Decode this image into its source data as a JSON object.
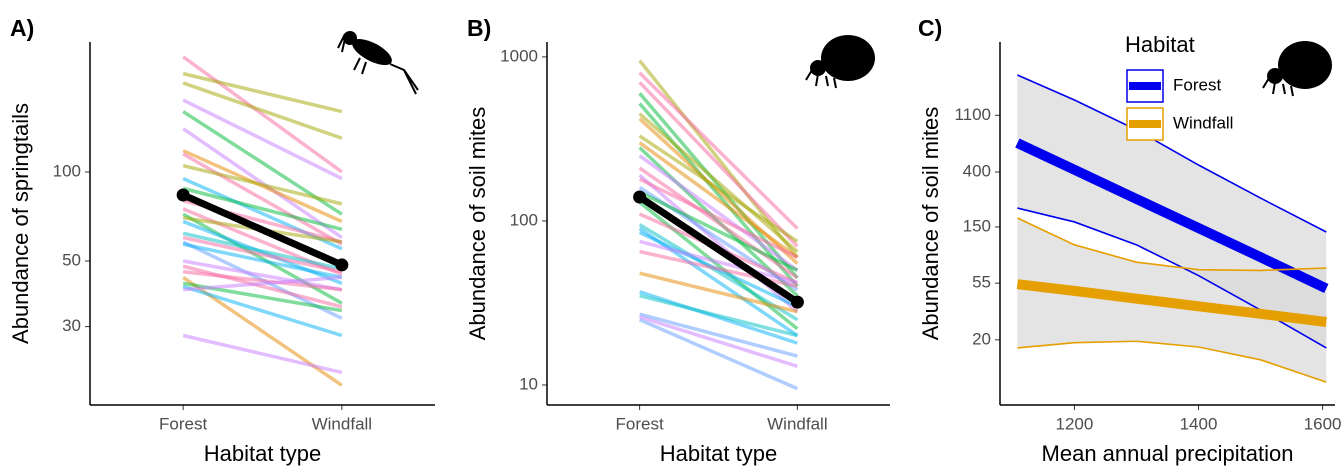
{
  "chart_data": [
    {
      "type": "slope",
      "label": "A)",
      "x_label": "Habitat type",
      "y_label": "Abundance of springtails",
      "categories": [
        "Forest",
        "Windfall"
      ],
      "log_y": true,
      "ylim": [
        16.3,
        275
      ],
      "yticks": [
        30,
        50,
        100
      ],
      "lines": [
        {
          "color": "#f766a0",
          "values": [
            245,
            100
          ]
        },
        {
          "color": "#a3a500",
          "values": [
            215,
            160
          ]
        },
        {
          "color": "#a3a500",
          "values": [
            200,
            130
          ]
        },
        {
          "color": "#c77cff",
          "values": [
            175,
            95
          ]
        },
        {
          "color": "#00ba38",
          "values": [
            160,
            72
          ]
        },
        {
          "color": "#c77cff",
          "values": [
            140,
            60
          ]
        },
        {
          "color": "#e58700",
          "values": [
            118,
            68
          ]
        },
        {
          "color": "#f766a0",
          "values": [
            115,
            57
          ]
        },
        {
          "color": "#a3a500",
          "values": [
            105,
            78
          ]
        },
        {
          "color": "#00b0f6",
          "values": [
            95,
            55
          ]
        },
        {
          "color": "#00ba38",
          "values": [
            88,
            64
          ]
        },
        {
          "color": "#f766a0",
          "values": [
            80,
            58
          ]
        },
        {
          "color": "#f766a0",
          "values": [
            75,
            45
          ]
        },
        {
          "color": "#00ba38",
          "values": [
            72,
            36
          ]
        },
        {
          "color": "#a3a500",
          "values": [
            70,
            58
          ]
        },
        {
          "color": "#00b0f6",
          "values": [
            68,
            42
          ]
        },
        {
          "color": "#00bfc4",
          "values": [
            62,
            47
          ]
        },
        {
          "color": "#f766a0",
          "values": [
            60,
            46
          ]
        },
        {
          "color": "#619cff",
          "values": [
            58,
            32
          ]
        },
        {
          "color": "#00b0f6",
          "values": [
            57,
            44
          ]
        },
        {
          "color": "#c77cff",
          "values": [
            50,
            40
          ]
        },
        {
          "color": "#f766a0",
          "values": [
            48,
            35
          ]
        },
        {
          "color": "#f766a0",
          "values": [
            46,
            40
          ]
        },
        {
          "color": "#e58700",
          "values": [
            44,
            19
          ]
        },
        {
          "color": "#00ba38",
          "values": [
            42,
            34
          ]
        },
        {
          "color": "#00b0f6",
          "values": [
            41,
            28
          ]
        },
        {
          "color": "#c77cff",
          "values": [
            40,
            44
          ]
        },
        {
          "color": "#c77cff",
          "values": [
            28,
            21
          ]
        }
      ],
      "mean_line": {
        "color": "#000000",
        "values": [
          83.6,
          48.5
        ]
      }
    },
    {
      "type": "slope",
      "label": "B)",
      "x_label": "Habitat type",
      "y_label": "Abundance of soil mites",
      "categories": [
        "Forest",
        "Windfall"
      ],
      "log_y": true,
      "ylim": [
        7.55,
        1233
      ],
      "yticks": [
        10,
        100,
        1000
      ],
      "lines": [
        {
          "color": "#a3a500",
          "values": [
            950,
            60
          ]
        },
        {
          "color": "#f766a0",
          "values": [
            800,
            90
          ]
        },
        {
          "color": "#f766a0",
          "values": [
            700,
            70
          ]
        },
        {
          "color": "#00ba38",
          "values": [
            600,
            45
          ]
        },
        {
          "color": "#00ba38",
          "values": [
            520,
            40
          ]
        },
        {
          "color": "#a3a500",
          "values": [
            450,
            65
          ]
        },
        {
          "color": "#e58700",
          "values": [
            420,
            55
          ]
        },
        {
          "color": "#a3a500",
          "values": [
            330,
            75
          ]
        },
        {
          "color": "#e58700",
          "values": [
            300,
            60
          ]
        },
        {
          "color": "#00ba38",
          "values": [
            280,
            35
          ]
        },
        {
          "color": "#c77cff",
          "values": [
            250,
            50
          ]
        },
        {
          "color": "#f766a0",
          "values": [
            210,
            45
          ]
        },
        {
          "color": "#c77cff",
          "values": [
            190,
            28
          ]
        },
        {
          "color": "#f766a0",
          "values": [
            180,
            60
          ]
        },
        {
          "color": "#619cff",
          "values": [
            160,
            38
          ]
        },
        {
          "color": "#00ba38",
          "values": [
            150,
            50
          ]
        },
        {
          "color": "#00ba38",
          "values": [
            130,
            22
          ]
        },
        {
          "color": "#f766a0",
          "values": [
            110,
            42
          ]
        },
        {
          "color": "#00bfc4",
          "values": [
            95,
            25
          ]
        },
        {
          "color": "#00b0f6",
          "values": [
            90,
            20
          ]
        },
        {
          "color": "#00b0f6",
          "values": [
            85,
            30
          ]
        },
        {
          "color": "#c77cff",
          "values": [
            75,
            42
          ]
        },
        {
          "color": "#f766a0",
          "values": [
            65,
            40
          ]
        },
        {
          "color": "#e58700",
          "values": [
            48,
            28
          ]
        },
        {
          "color": "#00b0f6",
          "values": [
            37,
            18
          ]
        },
        {
          "color": "#00bfc4",
          "values": [
            35,
            20
          ]
        },
        {
          "color": "#619cff",
          "values": [
            27,
            15
          ]
        },
        {
          "color": "#619cff",
          "values": [
            25,
            9.5
          ]
        },
        {
          "color": "#c77cff",
          "values": [
            26,
            13
          ]
        }
      ],
      "mean_line": {
        "color": "#000000",
        "values": [
          140,
          32
        ]
      }
    },
    {
      "type": "line",
      "label": "C)",
      "x_label": "Mean annual precipitation",
      "y_label": "Abundance of soil mites",
      "legend_title": "Habitat",
      "log_y": true,
      "xlim": [
        1080,
        1620
      ],
      "xticks": [
        1200,
        1400,
        1600
      ],
      "ylim": [
        6.25,
        4070
      ],
      "yticks": [
        20,
        55,
        150,
        400,
        1100
      ],
      "band_color": "#d9d9d9",
      "x": [
        1108,
        1200,
        1300,
        1400,
        1500,
        1606
      ],
      "series": [
        {
          "name": "Forest",
          "color": "#0000ee",
          "values": [
            671,
            416,
            247,
            147,
            87.4,
            50
          ],
          "upper": [
            2258,
            1445,
            848,
            453,
            251,
            137
          ],
          "lower": [
            210,
            164,
            109,
            63,
            34,
            17.3
          ]
        },
        {
          "name": "Windfall",
          "color": "#e69f00",
          "values": [
            54,
            47.9,
            41.7,
            36.4,
            31.8,
            27.5
          ],
          "upper": [
            176,
            109,
            80,
            70,
            69,
            72
          ],
          "lower": [
            17.3,
            19,
            19.5,
            17.6,
            14,
            9.4
          ]
        }
      ]
    }
  ]
}
